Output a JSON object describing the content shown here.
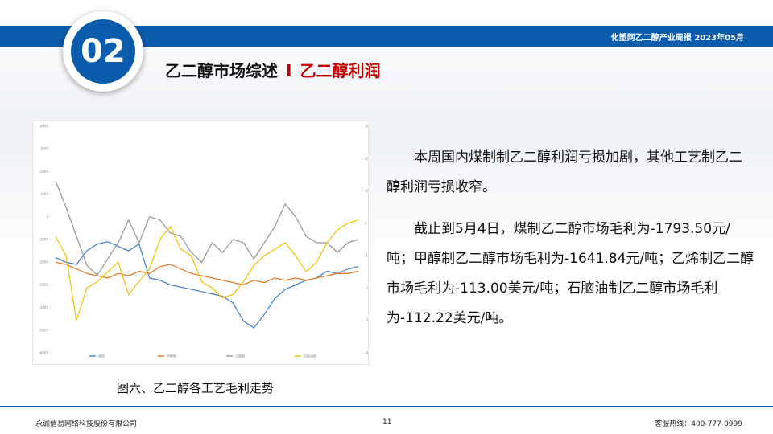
{
  "header": {
    "report": "化塑网乙二醇产业周报   2023年05月",
    "number": "02",
    "title": "乙二醇市场综述",
    "separator": "I",
    "subtitle": "乙二醇利润"
  },
  "chart_data": {
    "type": "line",
    "ylim": [
      -6000,
      4000
    ],
    "yticks": [
      -6000,
      -5000,
      -4000,
      -3000,
      -2000,
      -1000,
      0,
      1000,
      2000,
      3000,
      4000
    ],
    "y2lim": [
      -400,
      300
    ],
    "y2ticks": [
      -400,
      -300,
      -200,
      -100,
      0,
      100,
      200,
      300
    ],
    "grid": false,
    "series": [
      {
        "name": "煤制",
        "color": "#4a86c8",
        "values": [
          -1800,
          -2000,
          -2100,
          -1500,
          -1200,
          -1100,
          -1300,
          -1500,
          -1200,
          -2700,
          -2800,
          -3000,
          -3100,
          -3200,
          -3300,
          -3400,
          -3500,
          -3800,
          -4600,
          -4900,
          -4300,
          -3600,
          -3200,
          -3000,
          -2800,
          -2700,
          -2400,
          -2500,
          -2300,
          -2200
        ]
      },
      {
        "name": "甲醇制",
        "color": "#e07b2a",
        "values": [
          -2000,
          -2100,
          -2300,
          -2500,
          -2600,
          -2700,
          -2500,
          -2600,
          -2400,
          -2500,
          -2200,
          -2100,
          -2300,
          -2500,
          -2600,
          -2700,
          -2800,
          -2900,
          -3000,
          -2800,
          -2900,
          -2700,
          -2800,
          -2700,
          -2800,
          -2700,
          -2600,
          -2500,
          -2500,
          -2400
        ]
      },
      {
        "name": "乙烯制",
        "color": "#9a9a9a",
        "axis": "y2",
        "values": [
          130,
          50,
          -40,
          -130,
          -160,
          -110,
          -60,
          10,
          -60,
          20,
          10,
          -30,
          -40,
          -90,
          -120,
          -60,
          -90,
          -50,
          -60,
          -110,
          -60,
          -10,
          60,
          20,
          -40,
          -60,
          -60,
          -90,
          -60,
          -50
        ]
      },
      {
        "name": "石脑油制",
        "color": "#f2c314",
        "axis": "y2",
        "values": [
          -40,
          -100,
          -300,
          -200,
          -180,
          -150,
          -120,
          -220,
          -180,
          -140,
          -50,
          -10,
          -80,
          -100,
          -180,
          -200,
          -230,
          -220,
          -180,
          -130,
          -100,
          -80,
          -60,
          -100,
          -150,
          -120,
          -60,
          -20,
          0,
          10
        ]
      }
    ]
  },
  "caption": "图六、乙二醇各工艺毛利走势",
  "paragraphs": [
    "本周国内煤制制乙二醇利润亏损加剧，其他工艺制乙二醇利润亏损收窄。",
    "截止到5月4日，煤制乙二醇市场毛利为-1793.50元/吨；甲醇制乙二醇市场毛利为-1641.84元/吨；乙烯制乙二醇市场毛利为-113.00美元/吨；石脑油制乙二醇市场毛利为-112.22美元/吨。"
  ],
  "footer": {
    "company": "永诚信易网络科技股份有限公司",
    "page": "11",
    "hotline": "客服热线：400-777-0999"
  }
}
